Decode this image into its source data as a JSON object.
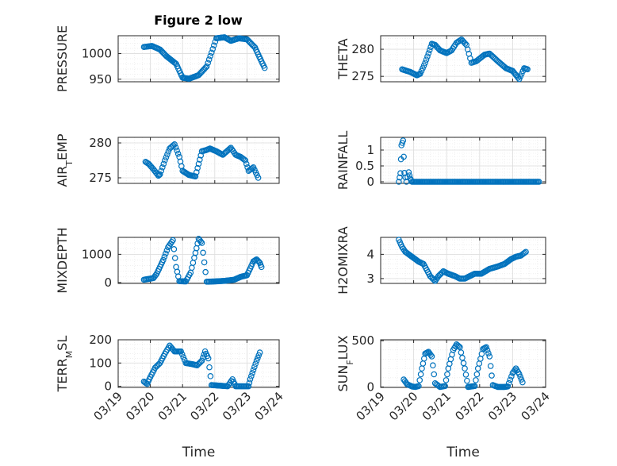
{
  "title": "Figure 2 low",
  "xlabel": "Time",
  "xticks": [
    "03/19",
    "03/20",
    "03/21",
    "03/22",
    "03/23",
    "03/24"
  ],
  "colors": {
    "marker": "#0072BD",
    "grid": "#dcdcdc",
    "axis": "#262626"
  },
  "chart_data": [
    {
      "type": "scatter",
      "ylabel": "PRESSURE",
      "xlim": [
        19,
        24
      ],
      "ylim": [
        945,
        1035
      ],
      "yticks": [
        950,
        1000
      ],
      "anchors": [
        [
          19.8,
          1013
        ],
        [
          20.05,
          1015
        ],
        [
          20.3,
          1008
        ],
        [
          20.5,
          995
        ],
        [
          20.8,
          980
        ],
        [
          21.0,
          953
        ],
        [
          21.2,
          951
        ],
        [
          21.5,
          958
        ],
        [
          21.75,
          975
        ],
        [
          21.9,
          1002
        ],
        [
          22.05,
          1030
        ],
        [
          22.3,
          1032
        ],
        [
          22.5,
          1025
        ],
        [
          22.75,
          1030
        ],
        [
          23.0,
          1028
        ],
        [
          23.25,
          1012
        ],
        [
          23.45,
          985
        ],
        [
          23.55,
          972
        ]
      ]
    },
    {
      "type": "scatter",
      "ylabel": "THETA",
      "xlim": [
        19,
        24
      ],
      "ylim": [
        274,
        282.5
      ],
      "yticks": [
        275,
        280
      ],
      "anchors": [
        [
          19.65,
          276.3
        ],
        [
          19.9,
          275.8
        ],
        [
          20.1,
          275.2
        ],
        [
          20.2,
          275.5
        ],
        [
          20.35,
          277.5
        ],
        [
          20.55,
          281
        ],
        [
          20.65,
          280.8
        ],
        [
          20.8,
          279.8
        ],
        [
          21.0,
          279.3
        ],
        [
          21.15,
          279.8
        ],
        [
          21.3,
          281.2
        ],
        [
          21.45,
          281.8
        ],
        [
          21.6,
          280.8
        ],
        [
          21.75,
          277.5
        ],
        [
          21.9,
          277.8
        ],
        [
          22.15,
          279
        ],
        [
          22.3,
          279.2
        ],
        [
          22.55,
          277.8
        ],
        [
          22.8,
          276.5
        ],
        [
          23.0,
          276
        ],
        [
          23.2,
          274.5
        ],
        [
          23.35,
          276.5
        ],
        [
          23.45,
          276.3
        ]
      ]
    },
    {
      "type": "scatter",
      "ylabel": "AIR_TEMP",
      "xlim": [
        19,
        24
      ],
      "ylim": [
        274.2,
        280.8
      ],
      "yticks": [
        275,
        280
      ],
      "anchors": [
        [
          19.85,
          277.3
        ],
        [
          19.95,
          277
        ],
        [
          20.1,
          276.2
        ],
        [
          20.25,
          275.3
        ],
        [
          20.3,
          275.5
        ],
        [
          20.45,
          277.5
        ],
        [
          20.6,
          279.2
        ],
        [
          20.75,
          279.8
        ],
        [
          20.9,
          278
        ],
        [
          21.0,
          276
        ],
        [
          21.2,
          275.4
        ],
        [
          21.4,
          275.2
        ],
        [
          21.6,
          278.8
        ],
        [
          21.75,
          279
        ],
        [
          21.85,
          279.2
        ],
        [
          22.05,
          278.8
        ],
        [
          22.25,
          278.3
        ],
        [
          22.4,
          278.9
        ],
        [
          22.5,
          279.3
        ],
        [
          22.65,
          278.3
        ],
        [
          22.8,
          278
        ],
        [
          22.95,
          277.5
        ],
        [
          23.05,
          276
        ],
        [
          23.2,
          276.5
        ],
        [
          23.35,
          275
        ]
      ]
    },
    {
      "type": "scatter",
      "ylabel": "RAINFALL",
      "xlim": [
        19,
        24
      ],
      "ylim": [
        -0.05,
        1.4
      ],
      "yticks": [
        0,
        0.5,
        1
      ],
      "anchors": [
        [
          19.55,
          0
        ],
        [
          19.6,
          0.27
        ],
        [
          19.63,
          1.15
        ],
        [
          19.68,
          1.3
        ],
        [
          19.72,
          0.28
        ],
        [
          19.78,
          0
        ],
        [
          19.85,
          0.3
        ],
        [
          19.9,
          0.1
        ],
        [
          19.95,
          0
        ],
        [
          23.8,
          0
        ]
      ]
    },
    {
      "type": "scatter",
      "ylabel": "MIXDEPTH",
      "xlim": [
        19,
        24
      ],
      "ylim": [
        -30,
        1600
      ],
      "yticks": [
        0,
        1000
      ],
      "anchors": [
        [
          19.8,
          100
        ],
        [
          19.95,
          130
        ],
        [
          20.1,
          160
        ],
        [
          20.2,
          320
        ],
        [
          20.4,
          800
        ],
        [
          20.55,
          1250
        ],
        [
          20.7,
          1500
        ],
        [
          20.8,
          550
        ],
        [
          20.9,
          50
        ],
        [
          21.1,
          40
        ],
        [
          21.25,
          350
        ],
        [
          21.4,
          1050
        ],
        [
          21.5,
          1550
        ],
        [
          21.6,
          1400
        ],
        [
          21.75,
          30
        ],
        [
          22.0,
          40
        ],
        [
          22.3,
          60
        ],
        [
          22.6,
          100
        ],
        [
          22.8,
          200
        ],
        [
          23.0,
          260
        ],
        [
          23.1,
          500
        ],
        [
          23.2,
          750
        ],
        [
          23.3,
          820
        ],
        [
          23.4,
          700
        ],
        [
          23.45,
          550
        ]
      ]
    },
    {
      "type": "scatter",
      "ylabel": "H2OMIXRA",
      "xlim": [
        19,
        24
      ],
      "ylim": [
        2.8,
        4.7
      ],
      "yticks": [
        3,
        4
      ],
      "anchors": [
        [
          19.55,
          4.6
        ],
        [
          19.65,
          4.3
        ],
        [
          19.75,
          4.1
        ],
        [
          19.95,
          3.9
        ],
        [
          20.15,
          3.7
        ],
        [
          20.3,
          3.6
        ],
        [
          20.5,
          3.1
        ],
        [
          20.65,
          2.9
        ],
        [
          20.75,
          3.1
        ],
        [
          20.9,
          3.3
        ],
        [
          21.05,
          3.2
        ],
        [
          21.25,
          3.1
        ],
        [
          21.4,
          3.0
        ],
        [
          21.55,
          3.0
        ],
        [
          21.7,
          3.1
        ],
        [
          21.85,
          3.2
        ],
        [
          22.05,
          3.2
        ],
        [
          22.3,
          3.4
        ],
        [
          22.55,
          3.5
        ],
        [
          22.75,
          3.6
        ],
        [
          22.95,
          3.8
        ],
        [
          23.1,
          3.9
        ],
        [
          23.25,
          3.95
        ],
        [
          23.4,
          4.1
        ]
      ]
    },
    {
      "type": "scatter",
      "ylabel": "TERR_MSL",
      "xlim": [
        19,
        24
      ],
      "ylim": [
        -5,
        200
      ],
      "yticks": [
        0,
        100,
        200
      ],
      "anchors": [
        [
          19.8,
          20
        ],
        [
          19.9,
          10
        ],
        [
          20.0,
          40
        ],
        [
          20.15,
          80
        ],
        [
          20.3,
          100
        ],
        [
          20.45,
          140
        ],
        [
          20.6,
          175
        ],
        [
          20.75,
          150
        ],
        [
          20.95,
          150
        ],
        [
          21.1,
          100
        ],
        [
          21.3,
          95
        ],
        [
          21.45,
          90
        ],
        [
          21.6,
          110
        ],
        [
          21.7,
          150
        ],
        [
          21.8,
          120
        ],
        [
          21.9,
          5
        ],
        [
          22.2,
          2
        ],
        [
          22.4,
          0
        ],
        [
          22.55,
          30
        ],
        [
          22.65,
          0
        ],
        [
          22.9,
          0
        ],
        [
          23.05,
          0
        ],
        [
          23.1,
          30
        ],
        [
          23.2,
          70
        ],
        [
          23.3,
          110
        ],
        [
          23.4,
          145
        ]
      ]
    },
    {
      "type": "scatter",
      "ylabel": "SUN_FLUX",
      "xlim": [
        19,
        24
      ],
      "ylim": [
        -5,
        510
      ],
      "yticks": [
        0,
        500
      ],
      "anchors": [
        [
          19.7,
          80
        ],
        [
          19.8,
          30
        ],
        [
          19.95,
          5
        ],
        [
          20.05,
          0
        ],
        [
          20.15,
          10
        ],
        [
          20.25,
          200
        ],
        [
          20.35,
          360
        ],
        [
          20.45,
          380
        ],
        [
          20.55,
          330
        ],
        [
          20.65,
          40
        ],
        [
          20.8,
          0
        ],
        [
          20.95,
          10
        ],
        [
          21.05,
          200
        ],
        [
          21.2,
          400
        ],
        [
          21.3,
          460
        ],
        [
          21.4,
          430
        ],
        [
          21.55,
          200
        ],
        [
          21.65,
          0
        ],
        [
          21.85,
          10
        ],
        [
          21.95,
          200
        ],
        [
          22.1,
          410
        ],
        [
          22.2,
          430
        ],
        [
          22.3,
          330
        ],
        [
          22.4,
          20
        ],
        [
          22.55,
          0
        ],
        [
          22.75,
          0
        ],
        [
          22.85,
          5
        ],
        [
          23.0,
          150
        ],
        [
          23.1,
          200
        ],
        [
          23.2,
          140
        ],
        [
          23.3,
          50
        ]
      ]
    }
  ]
}
